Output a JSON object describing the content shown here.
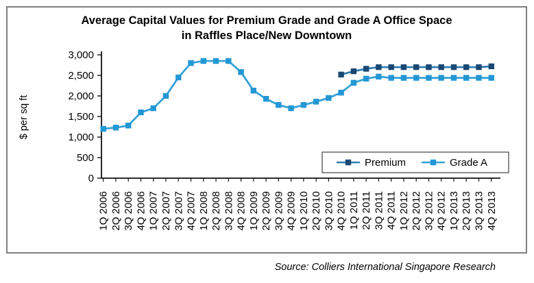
{
  "source_note": "Source: Colliers International Singapore Research",
  "chart_data": {
    "type": "line",
    "title": "Average Capital Values for Premium Grade and Grade A Office Space in Raffles Place/New Downtown",
    "ylabel": "$ per sq ft",
    "ylim": [
      0,
      3000
    ],
    "grid": false,
    "legend_position": "inside-bottom-right",
    "ytick_values": [
      0,
      500,
      1000,
      1500,
      2000,
      2500,
      3000
    ],
    "ytick_labels": [
      "0",
      "500",
      "1,000",
      "1,500",
      "2,000",
      "2,500",
      "3,000"
    ],
    "categories": [
      "1Q 2006",
      "2Q 2006",
      "3Q 2006",
      "4Q 2006",
      "1Q 2007",
      "2Q 2007",
      "3Q 2007",
      "4Q 2007",
      "1Q 2008",
      "2Q 2008",
      "3Q 2008",
      "4Q 2008",
      "1Q 2009",
      "2Q 2009",
      "3Q 2009",
      "4Q 2009",
      "1Q 2010",
      "2Q 2010",
      "3Q 2010",
      "4Q 2010",
      "1Q 2011",
      "2Q 2011",
      "3Q 2011",
      "4Q 2011",
      "1Q 2012",
      "2Q 2012",
      "3Q 2012",
      "4Q 2012",
      "1Q 2013",
      "2Q 2013",
      "3Q 2013",
      "4Q 2013"
    ],
    "series": [
      {
        "name": "Premium",
        "line_color": "#2E7DB4",
        "marker_color": "#1B4872",
        "values": [
          null,
          null,
          null,
          null,
          null,
          null,
          null,
          null,
          null,
          null,
          null,
          null,
          null,
          null,
          null,
          null,
          null,
          null,
          null,
          2520,
          2600,
          2660,
          2700,
          2700,
          2700,
          2700,
          2700,
          2700,
          2700,
          2700,
          2700,
          2720
        ]
      },
      {
        "name": "Grade A",
        "line_color": "#35A1D8",
        "marker_color": "#2397D4",
        "values": [
          1200,
          1230,
          1280,
          1600,
          1700,
          2000,
          2450,
          2800,
          2850,
          2850,
          2850,
          2580,
          2130,
          1930,
          1780,
          1700,
          1780,
          1860,
          1950,
          2080,
          2320,
          2420,
          2470,
          2440,
          2440,
          2440,
          2440,
          2440,
          2440,
          2440,
          2440,
          2440
        ]
      }
    ]
  }
}
